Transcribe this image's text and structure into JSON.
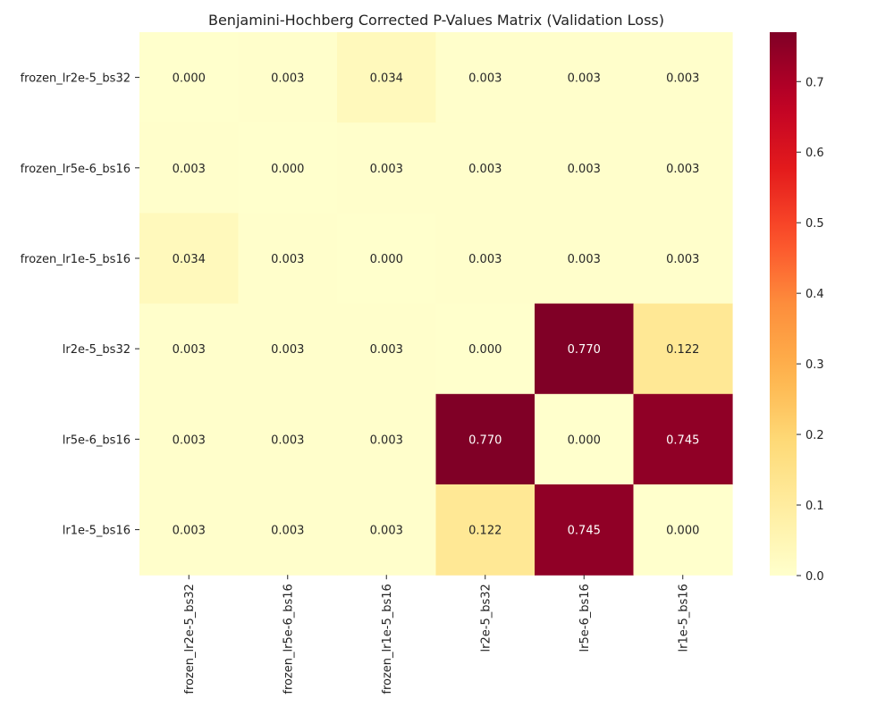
{
  "chart_data": {
    "type": "heatmap",
    "title": "Benjamini-Hochberg Corrected P-Values Matrix (Validation Loss)",
    "row_labels": [
      "frozen_lr2e-5_bs32",
      "frozen_lr5e-6_bs16",
      "frozen_lr1e-5_bs16",
      "lr2e-5_bs32",
      "lr5e-6_bs16",
      "lr1e-5_bs16"
    ],
    "col_labels": [
      "frozen_lr2e-5_bs32",
      "frozen_lr5e-6_bs16",
      "frozen_lr1e-5_bs16",
      "lr2e-5_bs32",
      "lr5e-6_bs16",
      "lr1e-5_bs16"
    ],
    "values": [
      [
        0.0,
        0.003,
        0.034,
        0.003,
        0.003,
        0.003
      ],
      [
        0.003,
        0.0,
        0.003,
        0.003,
        0.003,
        0.003
      ],
      [
        0.034,
        0.003,
        0.0,
        0.003,
        0.003,
        0.003
      ],
      [
        0.003,
        0.003,
        0.003,
        0.0,
        0.77,
        0.122
      ],
      [
        0.003,
        0.003,
        0.003,
        0.77,
        0.0,
        0.745
      ],
      [
        0.003,
        0.003,
        0.003,
        0.122,
        0.745,
        0.0
      ]
    ],
    "value_format": "0.000",
    "colormap": "YlOrRd",
    "vmin": 0.0,
    "vmax": 0.77,
    "colorbar_ticks": [
      "0.0",
      "0.1",
      "0.2",
      "0.3",
      "0.4",
      "0.5",
      "0.6",
      "0.7"
    ],
    "colorbar_tick_values": [
      0.0,
      0.1,
      0.2,
      0.3,
      0.4,
      0.5,
      0.6,
      0.7
    ],
    "grid": false,
    "legend": "colorbar-right"
  }
}
